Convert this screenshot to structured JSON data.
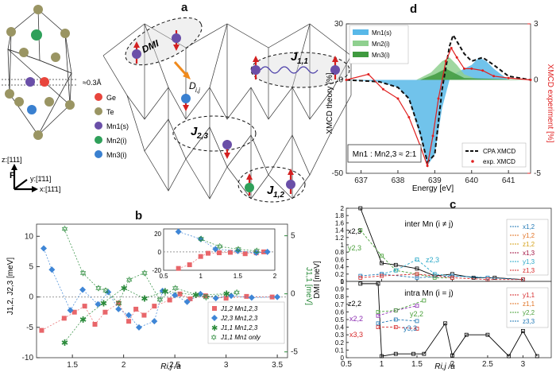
{
  "panel_letters": {
    "a": "a",
    "b": "b",
    "c": "c",
    "d": "d"
  },
  "structure": {
    "distance_label": "≈0.3Å",
    "legend": [
      {
        "label": "Ge",
        "color": "#e8453c"
      },
      {
        "label": "Te",
        "color": "#9a9563"
      },
      {
        "label": "Mn1(s)",
        "color": "#6a4fa8"
      },
      {
        "label": "Mn2(i)",
        "color": "#2fa05a"
      },
      {
        "label": "Mn3(i)",
        "color": "#3a80d0"
      }
    ],
    "axes": {
      "z": "z:[111]",
      "y": "y:[1̄11]",
      "x": "x:[11̄1]",
      "p": "P"
    }
  },
  "lattice_labels": {
    "dmi": "DMI",
    "dij": "D",
    "dij_sub": "i,j",
    "j11": "J",
    "j11_sub": "1,1",
    "j23": "J",
    "j23_sub": "2,3",
    "j12": "J",
    "j12_sub": "1,2"
  },
  "panel_b": {
    "ylabel_left": "J1,2, J2,3 [meV]",
    "ylabel_right": "J1,1 [meV]",
    "xlabel": "Ri,j /a",
    "legend": [
      "J1,2  Mn1,2,3",
      "J2,3  Mn1,2,3",
      "J1,1  Mn1,2,3",
      "J1,1  Mn1 only"
    ],
    "chart_data": {
      "type": "scatter",
      "xlim": [
        1.15,
        3.6
      ],
      "ylim_left": [
        -10,
        12
      ],
      "ylim_right": [
        -5.5,
        6
      ],
      "xticks": [
        1.5,
        2,
        2.5,
        3,
        3.5
      ],
      "yticks_left": [
        -10,
        -5,
        0,
        5,
        10
      ],
      "yticks_right": [
        -5,
        0,
        5
      ],
      "series": [
        {
          "name": "J1,2 Mn1,2,3",
          "color": "#e8666a",
          "marker": "square",
          "x": [
            1.2,
            1.42,
            1.52,
            1.62,
            1.72,
            1.82,
            1.95,
            2.05,
            2.12,
            2.2,
            2.3,
            2.45,
            2.55,
            2.65,
            2.8,
            3.0,
            3.2,
            3.45
          ],
          "y": [
            -5.5,
            -3.5,
            -2.5,
            -1.5,
            -4.5,
            -2.5,
            -1,
            -4,
            -2,
            -3,
            -1.5,
            -0.5,
            0.5,
            -0.3,
            0.2,
            -0.2,
            0.1,
            0
          ]
        },
        {
          "name": "J2,3 Mn1,2,3",
          "color": "#3f86d6",
          "marker": "diamond",
          "x": [
            1.22,
            1.3,
            1.48,
            1.6,
            1.75,
            1.85,
            1.95,
            2.05,
            2.15,
            2.3,
            2.38,
            2.5,
            2.62,
            2.75,
            2.9,
            3.05,
            3.25,
            3.5
          ],
          "y": [
            8,
            4.5,
            -2.2,
            1.2,
            -1.2,
            0.8,
            -2,
            -3,
            -5,
            -4,
            1,
            0.3,
            -0.8,
            0.5,
            -0.2,
            0.2,
            -0.1,
            0
          ]
        },
        {
          "name": "J1,1 Mn1,2,3",
          "color": "#2a8a3a",
          "marker": "star",
          "x": [
            1.42,
            1.6,
            1.8,
            2.0,
            2.2,
            2.4,
            2.7,
            3.0
          ],
          "y": [
            -4.2,
            -2.2,
            -0.8,
            0.5,
            -0.4,
            0.2,
            -0.1,
            0
          ]
        },
        {
          "name": "J1,1 Mn1 only",
          "color": "#2a8a3a",
          "marker": "star-open",
          "x": [
            1.42,
            1.6,
            1.75,
            1.82,
            1.95,
            2.05,
            2.2,
            2.35,
            2.5,
            2.8,
            3.1
          ],
          "y": [
            5.6,
            1.8,
            0.5,
            0.3,
            -0.8,
            1.2,
            1.8,
            -0.5,
            0.5,
            -0.3,
            0.1
          ]
        }
      ],
      "inset": {
        "xlim": [
          0.5,
          2
        ],
        "ylim": [
          -20,
          25
        ],
        "xticks": [
          0.5,
          1,
          1.5,
          2
        ],
        "yticks": [
          -20,
          0,
          20
        ],
        "series": [
          {
            "name": "J1,2",
            "color": "#e8666a",
            "marker": "square",
            "x": [
              0.7,
              0.85,
              1.0,
              1.1,
              1.25,
              1.4,
              1.6,
              1.75,
              1.85
            ],
            "y": [
              -18,
              -14,
              -5,
              -1.5,
              -1,
              -0.5,
              -2,
              -1,
              0
            ]
          },
          {
            "name": "J2,3",
            "color": "#3f86d6",
            "marker": "diamond",
            "x": [
              0.7,
              1.0,
              1.2,
              1.5,
              1.75,
              1.9
            ],
            "y": [
              22,
              14,
              3,
              1,
              -1,
              0
            ]
          },
          {
            "name": "J1,1",
            "color": "#2a8a3a",
            "marker": "star-open",
            "x": [
              1.0,
              1.25,
              1.5,
              1.75
            ],
            "y": [
              14,
              6,
              3,
              1
            ]
          }
        ]
      }
    }
  },
  "panel_c": {
    "ylabel": "DMI [meV]",
    "xlabel": "Ri,j /a",
    "top_title": "inter Mn (i ≠ j)",
    "bottom_title": "intra Mn (i = j)",
    "top_legend": [
      "x1,2",
      "y1,2",
      "z1,2",
      "x1,3",
      "y1,3",
      "z1,3"
    ],
    "bottom_legend": [
      "y1,1",
      "z1,1",
      "y2,2",
      "z3,3"
    ],
    "annotations_top": [
      "x2,3",
      "y2,3",
      "z2,3"
    ],
    "annotations_bottom": [
      "z2,2",
      "x2,2",
      "y2,2",
      "x3,3",
      "y3,3"
    ],
    "chart_data": {
      "type": "line",
      "xlim": [
        0.5,
        3.4
      ],
      "xticks": [
        0.5,
        1,
        1.5,
        2,
        2.5,
        3
      ],
      "top": {
        "ylim": [
          0,
          2
        ],
        "yticks": [
          0,
          0.2,
          0.4,
          0.6,
          0.8,
          1,
          1.2,
          1.4,
          1.6,
          1.8,
          2
        ],
        "series": [
          {
            "name": "x2,3",
            "color": "#000000",
            "x": [
              0.7,
              1.0,
              1.2,
              1.5,
              1.75,
              2.0,
              2.3,
              2.6,
              3.0
            ],
            "y": [
              2.0,
              0.5,
              0.45,
              0.35,
              0.15,
              0.2,
              0.1,
              0.1,
              0.05
            ]
          },
          {
            "name": "y2,3",
            "color": "#4aa03a",
            "x": [
              0.7,
              1.0,
              1.2,
              1.5,
              1.75,
              2.0
            ],
            "y": [
              1.4,
              0.7,
              0.3,
              0.2,
              0.1,
              0.1
            ]
          },
          {
            "name": "z2,3",
            "color": "#2aa8c8",
            "x": [
              1.0,
              1.2,
              1.5,
              1.75,
              2.0,
              2.5
            ],
            "y": [
              0.2,
              0.3,
              0.6,
              0.2,
              0.15,
              0.1
            ]
          },
          {
            "name": "x1,2",
            "color": "#1f77b4",
            "x": [
              0.7,
              1.0,
              1.5,
              2.0,
              2.5,
              3.0
            ],
            "y": [
              0.15,
              0.2,
              0.1,
              0.15,
              0.1,
              0.05
            ]
          },
          {
            "name": "z1,3",
            "color": "#d62728",
            "x": [
              0.7,
              1.0,
              1.5,
              2.0,
              2.5,
              3.0
            ],
            "y": [
              0.1,
              0.15,
              0.2,
              0.1,
              0.05,
              0.05
            ]
          }
        ]
      },
      "bottom": {
        "ylim": [
          0,
          1
        ],
        "yticks": [
          0,
          0.1,
          0.2,
          0.3,
          0.4,
          0.5,
          0.6,
          0.7,
          0.8,
          0.9,
          1
        ],
        "series": [
          {
            "name": "z2,2",
            "color": "#000000",
            "x": [
              0.7,
              0.95,
              1.0,
              1.2,
              1.45,
              1.6,
              1.9,
              2.0,
              2.2,
              2.5,
              2.8,
              3.0,
              3.2
            ],
            "y": [
              0.97,
              0.97,
              0.02,
              0.05,
              0.05,
              0.05,
              0.45,
              0.03,
              0.3,
              0.3,
              0.02,
              0.35,
              0.02
            ]
          },
          {
            "name": "x2,2",
            "color": "#8a2ab0",
            "x": [
              0.95,
              1.2,
              1.5
            ],
            "y": [
              0.55,
              0.62,
              0.68
            ]
          },
          {
            "name": "y2,2",
            "color": "#4aa03a",
            "x": [
              0.95,
              1.2,
              1.6
            ],
            "y": [
              0.6,
              0.62,
              0.75
            ]
          },
          {
            "name": "x3,3",
            "color": "#d62728",
            "x": [
              0.95,
              1.2,
              1.5
            ],
            "y": [
              0.4,
              0.4,
              0.38
            ]
          },
          {
            "name": "y3,3",
            "color": "#1f77b4",
            "x": [
              0.95,
              1.2,
              1.5
            ],
            "y": [
              0.45,
              0.5,
              0.48
            ]
          }
        ]
      }
    }
  },
  "panel_d": {
    "ylabel_left": "XMCD theory [%]",
    "ylabel_right": "XMCD experiment [%]",
    "xlabel": "Energy [eV]",
    "legend": [
      "Mn1(s)",
      "Mn2(i)",
      "Mn3(i)"
    ],
    "legend2": [
      "CPA XMCD",
      "exp. XMCD"
    ],
    "ratio_label": "Mn1 : Mn2,3 ≈ 2:1",
    "chart_data": {
      "type": "area",
      "xlim": [
        636.6,
        641.6
      ],
      "ylim_left": [
        -50,
        30
      ],
      "ylim_right": [
        -5,
        3
      ],
      "xticks": [
        637,
        638,
        639,
        640,
        641
      ],
      "yticks_left": [
        -50,
        0,
        30
      ],
      "yticks_right": [
        -5,
        0,
        3
      ],
      "series": [
        {
          "name": "Mn1(s)",
          "color": "#58b8e8",
          "x": [
            636.6,
            637.5,
            638.0,
            638.3,
            638.6,
            638.8,
            639.0,
            639.2,
            639.4,
            639.6,
            639.8,
            640.0,
            640.2,
            640.4,
            640.6,
            640.8,
            641.0,
            641.6
          ],
          "y": [
            0,
            -1,
            -4,
            -10,
            -30,
            -46,
            -40,
            -15,
            0,
            4,
            6,
            8,
            12,
            10,
            6,
            3,
            0,
            0
          ]
        },
        {
          "name": "Mn2(i)",
          "color": "#8fd08f",
          "x": [
            636.6,
            638.5,
            638.9,
            639.2,
            639.4,
            639.6,
            639.8,
            640.2,
            641.6
          ],
          "y": [
            0,
            0,
            4,
            10,
            12,
            8,
            3,
            0,
            0
          ]
        },
        {
          "name": "Mn3(i)",
          "color": "#3f9a3f",
          "x": [
            636.6,
            638.6,
            639.0,
            639.3,
            639.5,
            639.8,
            641.6
          ],
          "y": [
            0,
            0,
            3,
            6,
            4,
            1,
            0
          ]
        },
        {
          "name": "CPA XMCD",
          "color": "#111111",
          "x": [
            636.6,
            637.5,
            638.0,
            638.3,
            638.6,
            638.8,
            639.0,
            639.2,
            639.4,
            639.5,
            639.8,
            640.0,
            640.3,
            640.6,
            641.0,
            641.6
          ],
          "y": [
            0,
            -1,
            -4,
            -10,
            -28,
            -44,
            -40,
            -5,
            18,
            24,
            14,
            10,
            12,
            8,
            2,
            0
          ]
        },
        {
          "name": "exp. XMCD",
          "color": "#e02020",
          "x": [
            636.6,
            637.2,
            637.6,
            638.0,
            638.3,
            638.6,
            638.8,
            638.95,
            639.1,
            639.3,
            639.45,
            639.6,
            639.8,
            640.0,
            640.3,
            640.6,
            641.0,
            641.6
          ],
          "y": [
            0,
            0.3,
            -0.5,
            -1.0,
            -2.0,
            -3.5,
            -4.6,
            -3.0,
            -1.0,
            1.0,
            1.7,
            1.2,
            0.6,
            0.6,
            0.5,
            0.2,
            0.1,
            0
          ]
        }
      ]
    }
  }
}
